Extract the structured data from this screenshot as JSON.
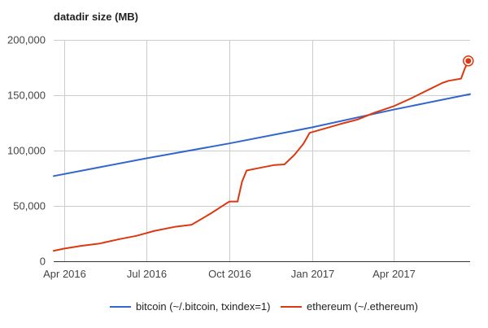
{
  "chart_data": {
    "type": "line",
    "title": "datadir size (MB)",
    "xlabel": "",
    "ylabel": "",
    "x_range": [
      "2016-03-20",
      "2017-06-25"
    ],
    "ylim": [
      0,
      200000
    ],
    "y_ticks": [
      0,
      50000,
      100000,
      150000,
      200000
    ],
    "y_tick_labels": [
      "0",
      "50,000",
      "100,000",
      "150,000",
      "200,000"
    ],
    "x_ticks": [
      "2016-04-01",
      "2016-07-01",
      "2016-10-01",
      "2017-01-01",
      "2017-04-01"
    ],
    "x_tick_labels": [
      "Apr 2016",
      "Jul 2016",
      "Oct 2016",
      "Jan 2017",
      "Apr 2017"
    ],
    "grid": true,
    "legend_position": "bottom",
    "series": [
      {
        "name": "bitcoin (~/.bitcoin, txindex=1)",
        "color": "#3366cc",
        "x": [
          "2016-03-20",
          "2016-07-01",
          "2016-10-01",
          "2017-01-01",
          "2017-04-01",
          "2017-06-25"
        ],
        "y": [
          77000,
          93000,
          106500,
          121000,
          137000,
          151000
        ]
      },
      {
        "name": "ethereum (~/.ethereum)",
        "color": "#dc3912",
        "x": [
          "2016-03-20",
          "2016-04-01",
          "2016-04-20",
          "2016-05-10",
          "2016-06-01",
          "2016-06-20",
          "2016-07-10",
          "2016-08-01",
          "2016-08-20",
          "2016-09-10",
          "2016-09-28",
          "2016-10-01",
          "2016-10-10",
          "2016-10-15",
          "2016-10-20",
          "2016-11-01",
          "2016-11-20",
          "2016-12-01",
          "2016-12-12",
          "2016-12-22",
          "2016-12-29",
          "2017-01-15",
          "2017-02-01",
          "2017-02-20",
          "2017-03-10",
          "2017-04-01",
          "2017-04-20",
          "2017-05-10",
          "2017-05-25",
          "2017-06-01",
          "2017-06-15",
          "2017-06-19",
          "2017-06-23"
        ],
        "y": [
          9500,
          11500,
          14000,
          16000,
          20000,
          23000,
          27500,
          31000,
          33000,
          43000,
          52500,
          54000,
          54000,
          72000,
          82000,
          84000,
          87000,
          87500,
          96000,
          106000,
          116000,
          120000,
          124000,
          128000,
          134000,
          140000,
          147000,
          155000,
          161000,
          163000,
          165000,
          174000,
          181000
        ]
      }
    ]
  }
}
